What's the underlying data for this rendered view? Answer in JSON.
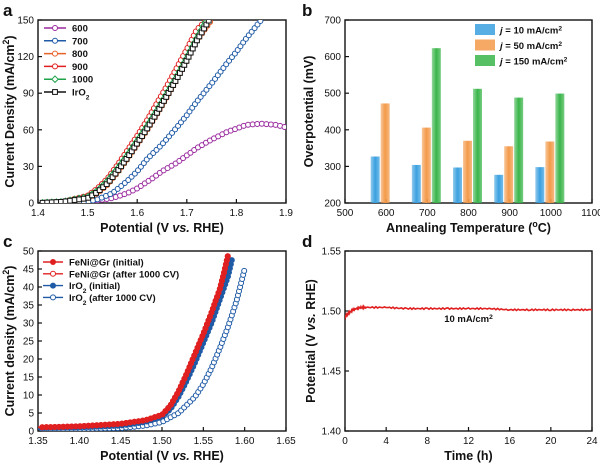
{
  "chart_data": [
    {
      "panel": "a",
      "type": "line",
      "xlabel": "Potential (V vs. RHE)",
      "ylabel": "Current Density (mA/cm2)",
      "xlim": [
        1.4,
        1.9
      ],
      "ylim": [
        0,
        150
      ],
      "xticks": [
        "1.4",
        "1.5",
        "1.6",
        "1.7",
        "1.8",
        "1.9"
      ],
      "yticks": [
        "0",
        "30",
        "60",
        "90",
        "120",
        "150"
      ],
      "legend_position": "top-left",
      "series": [
        {
          "name": "600",
          "color": "#9a2a9f",
          "x": [
            1.4,
            1.45,
            1.5,
            1.52,
            1.55,
            1.58,
            1.6,
            1.63,
            1.65,
            1.68,
            1.7,
            1.72,
            1.75,
            1.78,
            1.8,
            1.82,
            1.85,
            1.88,
            1.9
          ],
          "y": [
            0,
            0,
            1,
            2,
            4,
            8,
            12,
            20,
            26,
            33,
            39,
            45,
            52,
            58,
            61,
            64,
            65,
            64,
            62
          ]
        },
        {
          "name": "700",
          "color": "#1f5aa6",
          "x": [
            1.4,
            1.45,
            1.5,
            1.52,
            1.55,
            1.58,
            1.6,
            1.62,
            1.65,
            1.68,
            1.7,
            1.72,
            1.75,
            1.78,
            1.8,
            1.82,
            1.85
          ],
          "y": [
            0,
            0,
            1,
            3,
            8,
            18,
            26,
            36,
            48,
            62,
            72,
            83,
            98,
            114,
            124,
            135,
            150
          ]
        },
        {
          "name": "800",
          "color": "#e8632a",
          "x": [
            1.4,
            1.45,
            1.5,
            1.52,
            1.54,
            1.56,
            1.58,
            1.6,
            1.62,
            1.64,
            1.66,
            1.68,
            1.7,
            1.72,
            1.75
          ],
          "y": [
            0,
            1,
            4,
            8,
            15,
            25,
            36,
            48,
            60,
            73,
            87,
            102,
            117,
            133,
            150
          ]
        },
        {
          "name": "900",
          "color": "#e02020",
          "x": [
            1.4,
            1.45,
            1.5,
            1.52,
            1.54,
            1.56,
            1.58,
            1.6,
            1.62,
            1.64,
            1.66,
            1.68,
            1.7,
            1.72,
            1.74
          ],
          "y": [
            0,
            1,
            6,
            12,
            20,
            31,
            43,
            55,
            68,
            82,
            96,
            111,
            126,
            142,
            150
          ]
        },
        {
          "name": "1000",
          "color": "#1ea24a",
          "x": [
            1.4,
            1.45,
            1.5,
            1.52,
            1.54,
            1.56,
            1.58,
            1.6,
            1.62,
            1.64,
            1.66,
            1.68,
            1.7,
            1.72,
            1.74
          ],
          "y": [
            0,
            1,
            5,
            10,
            18,
            28,
            39,
            51,
            63,
            76,
            90,
            104,
            119,
            135,
            150
          ]
        },
        {
          "name": "IrO2",
          "color": "#111111",
          "x": [
            1.4,
            1.45,
            1.5,
            1.52,
            1.54,
            1.56,
            1.58,
            1.6,
            1.62,
            1.64,
            1.66,
            1.68,
            1.7,
            1.72,
            1.745
          ],
          "y": [
            0,
            1,
            4,
            9,
            16,
            26,
            37,
            49,
            61,
            74,
            88,
            102,
            117,
            133,
            150
          ]
        }
      ]
    },
    {
      "panel": "b",
      "type": "bar",
      "xlabel": "Annealing Temperature (oC)",
      "ylabel": "Overpotential (mV)",
      "xlim": [
        500,
        1100
      ],
      "ylim": [
        200,
        700
      ],
      "xticks": [
        "500",
        "600",
        "700",
        "800",
        "900",
        "1000",
        "1100"
      ],
      "yticks": [
        "200",
        "300",
        "400",
        "500",
        "600",
        "700"
      ],
      "legend_position": "top-right",
      "categories": [
        600,
        700,
        800,
        900,
        1000
      ],
      "series": [
        {
          "name": "j = 10 mA/cm2",
          "color": "#3aa0e0",
          "values": [
            327,
            304,
            297,
            277,
            298
          ]
        },
        {
          "name": "j = 50 mA/cm2",
          "color": "#f39a4a",
          "values": [
            472,
            406,
            370,
            355,
            368
          ]
        },
        {
          "name": "j = 150 mA/cm2",
          "color": "#3ab54a",
          "values": [
            null,
            623,
            512,
            488,
            499
          ]
        }
      ]
    },
    {
      "panel": "c",
      "type": "line",
      "xlabel": "Potential (V vs. RHE)",
      "ylabel": "Current density (mA/cm2)",
      "xlim": [
        1.35,
        1.65
      ],
      "ylim": [
        0,
        50
      ],
      "xticks": [
        "1.35",
        "1.40",
        "1.45",
        "1.50",
        "1.55",
        "1.60",
        "1.65"
      ],
      "yticks": [
        "0",
        "5",
        "10",
        "15",
        "20",
        "25",
        "30",
        "35",
        "40",
        "45",
        "50"
      ],
      "legend_position": "top-left",
      "series": [
        {
          "name": "FeNi@Gr (initial)",
          "color": "#e02020",
          "filled": true,
          "x": [
            1.35,
            1.4,
            1.45,
            1.48,
            1.5,
            1.51,
            1.52,
            1.53,
            1.54,
            1.55,
            1.56,
            1.57,
            1.575,
            1.58
          ],
          "y": [
            1,
            1.3,
            2,
            3,
            4.5,
            7,
            11,
            16,
            21.5,
            27,
            33,
            39.5,
            44,
            49
          ]
        },
        {
          "name": "FeNi@Gr (after 1000 CV)",
          "color": "#e02020",
          "filled": false,
          "x": [
            1.35,
            1.4,
            1.45,
            1.48,
            1.5,
            1.51,
            1.52,
            1.53,
            1.54,
            1.55,
            1.56,
            1.57,
            1.575,
            1.58
          ],
          "y": [
            1,
            1.3,
            2,
            3,
            4.5,
            7,
            11,
            16,
            21.5,
            27,
            33,
            39.5,
            44,
            49
          ]
        },
        {
          "name": "IrO2 (initial)",
          "color": "#1f5aa6",
          "filled": true,
          "x": [
            1.35,
            1.4,
            1.45,
            1.48,
            1.5,
            1.51,
            1.52,
            1.53,
            1.54,
            1.55,
            1.56,
            1.57,
            1.58,
            1.585
          ],
          "y": [
            0.8,
            1,
            1.5,
            2.5,
            4,
            6,
            9.5,
            14,
            19,
            24.5,
            30,
            36.5,
            43,
            48
          ]
        },
        {
          "name": "IrO2 (after 1000 CV)",
          "color": "#1f5aa6",
          "filled": false,
          "x": [
            1.35,
            1.4,
            1.45,
            1.48,
            1.5,
            1.52,
            1.54,
            1.55,
            1.56,
            1.57,
            1.58,
            1.59,
            1.6
          ],
          "y": [
            0.5,
            0.6,
            0.8,
            1.5,
            2.5,
            5,
            9.5,
            13,
            17.5,
            23,
            29,
            36,
            45
          ]
        }
      ]
    },
    {
      "panel": "d",
      "type": "line",
      "xlabel": "Time (h)",
      "ylabel": "Potential (V vs. RHE)",
      "xlim": [
        0,
        24
      ],
      "ylim": [
        1.4,
        1.55
      ],
      "xticks": [
        "0",
        "4",
        "8",
        "12",
        "16",
        "20",
        "24"
      ],
      "yticks": [
        "1.40",
        "1.45",
        "1.50",
        "1.55"
      ],
      "annotation": "10 mA/cm2",
      "series": [
        {
          "color": "#e02020",
          "x": [
            0,
            0.3,
            0.8,
            1.5,
            2,
            4,
            6,
            8,
            10,
            12,
            14,
            16,
            18,
            20,
            22,
            24
          ],
          "y": [
            1.495,
            1.498,
            1.501,
            1.503,
            1.503,
            1.503,
            1.502,
            1.502,
            1.502,
            1.502,
            1.502,
            1.501,
            1.501,
            1.501,
            1.501,
            1.501
          ]
        }
      ]
    }
  ]
}
